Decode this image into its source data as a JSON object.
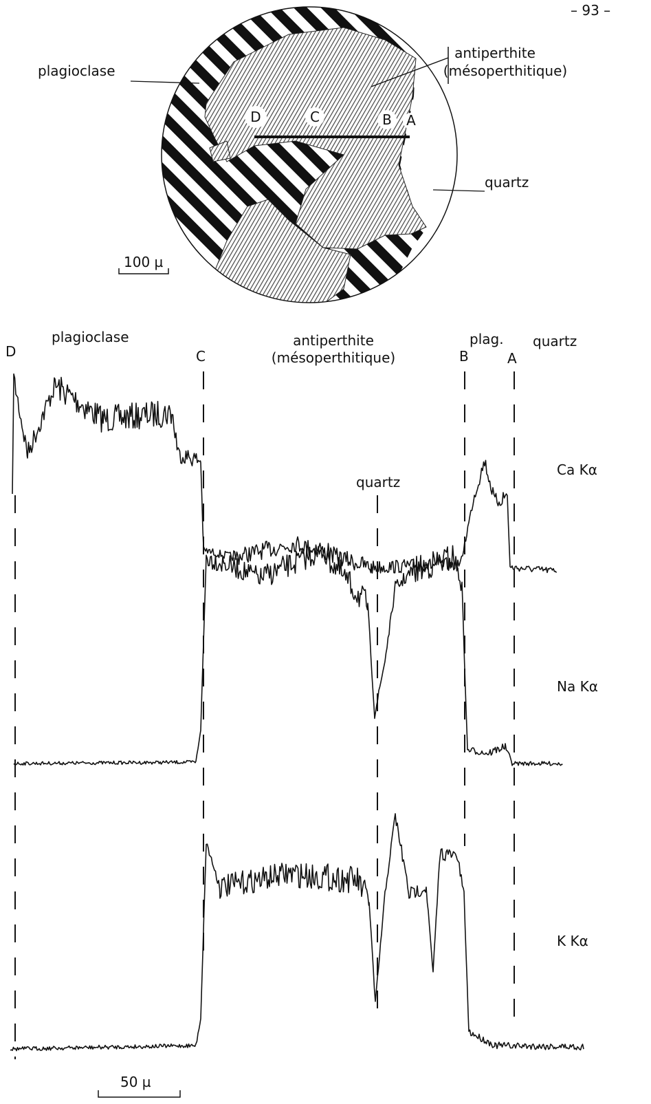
{
  "header": {
    "page_number": "– 93 –"
  },
  "micrograph": {
    "labels": {
      "plagioclase": "plagioclase",
      "antiperthite": "antiperthite",
      "antiperthite_note": "(mésoperthitique)",
      "quartz": "quartz"
    },
    "points": [
      "D",
      "C",
      "B",
      "A"
    ],
    "scale": "100 µ"
  },
  "scan": {
    "zones": {
      "plagioclase": "plagioclase",
      "antiperthite": "antiperthite",
      "antiperthite_note": "(mésoperthitique)",
      "plag": "plag.",
      "quartz": "quartz",
      "quartz_inner": "quartz"
    },
    "points": [
      "D",
      "C",
      "B",
      "A"
    ],
    "elements": [
      "Ca Kα",
      "Na Kα",
      "K Kα"
    ],
    "scale": "50 µ"
  }
}
